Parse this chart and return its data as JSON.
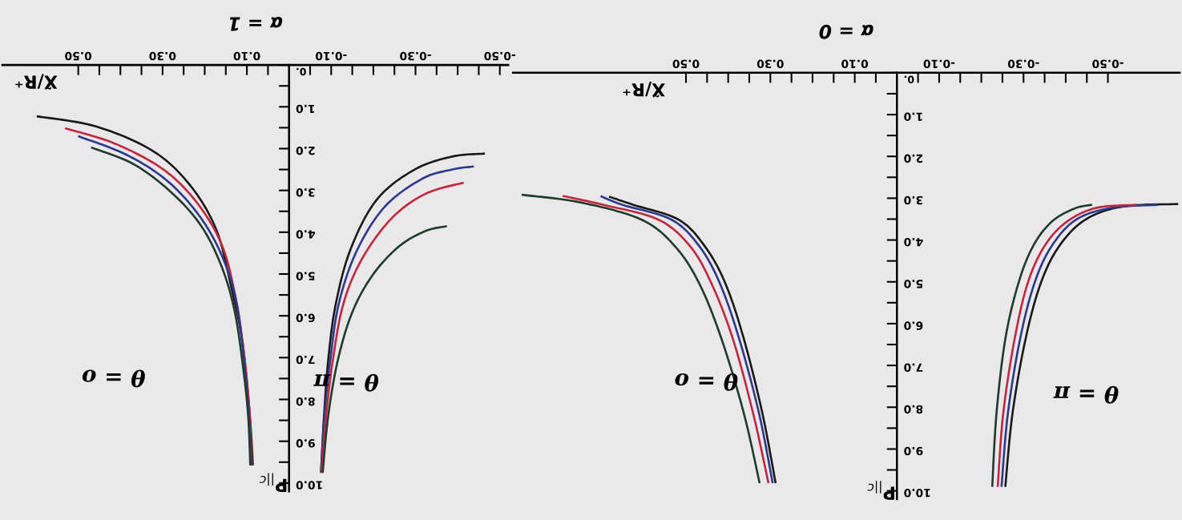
{
  "chart_data": [
    {
      "type": "line",
      "title": "α = 1",
      "xlabel": "X̃/R⁺",
      "ylabel": "P$_{||c}$",
      "xlim": [
        0.68,
        -0.52
      ],
      "ylim": [
        10.2,
        0
      ],
      "grid": false,
      "xticks": [
        {
          "value": 0.5,
          "label": "0.50"
        },
        {
          "value": 0.45,
          "label": null
        },
        {
          "value": 0.4,
          "label": null
        },
        {
          "value": 0.35,
          "label": null
        },
        {
          "value": 0.3,
          "label": "0.30"
        },
        {
          "value": 0.25,
          "label": null
        },
        {
          "value": 0.2,
          "label": null
        },
        {
          "value": 0.15,
          "label": null
        },
        {
          "value": 0.1,
          "label": "0.10"
        },
        {
          "value": 0.05,
          "label": null
        },
        {
          "value": -0.05,
          "label": null
        },
        {
          "value": -0.1,
          "label": "-0.10"
        },
        {
          "value": -0.15,
          "label": null
        },
        {
          "value": -0.2,
          "label": null
        },
        {
          "value": -0.25,
          "label": null
        },
        {
          "value": -0.3,
          "label": "-0.30"
        },
        {
          "value": -0.35,
          "label": null
        },
        {
          "value": -0.4,
          "label": null
        },
        {
          "value": -0.45,
          "label": null
        },
        {
          "value": -0.5,
          "label": "-0.50"
        }
      ],
      "yticks": [
        {
          "value": 0,
          "label": "0."
        },
        {
          "value": 0.5,
          "label": null
        },
        {
          "value": 1,
          "label": "1.0"
        },
        {
          "value": 1.5,
          "label": null
        },
        {
          "value": 2,
          "label": "2.0"
        },
        {
          "value": 2.5,
          "label": null
        },
        {
          "value": 3,
          "label": "3.0"
        },
        {
          "value": 3.5,
          "label": null
        },
        {
          "value": 4,
          "label": "4.0"
        },
        {
          "value": 4.5,
          "label": null
        },
        {
          "value": 5,
          "label": "5.0"
        },
        {
          "value": 5.5,
          "label": null
        },
        {
          "value": 6,
          "label": "6.0"
        },
        {
          "value": 6.5,
          "label": null
        },
        {
          "value": 7,
          "label": "7.0"
        },
        {
          "value": 7.5,
          "label": null
        },
        {
          "value": 8,
          "label": "8.0"
        },
        {
          "value": 8.5,
          "label": null
        },
        {
          "value": 9,
          "label": "9.0"
        },
        {
          "value": 9.5,
          "label": null
        },
        {
          "value": 10,
          "label": "10.0"
        }
      ],
      "annotations": [
        "θ = π",
        "θ = o"
      ],
      "series": [
        {
          "color": "#1a1a1a",
          "x": [
            0.596,
            0.458,
            0.324,
            0.236,
            0.173,
            0.138,
            0.111,
            0.093,
            0.086
          ],
          "values": [
            1.23,
            1.47,
            2.05,
            2.86,
            3.93,
            5.27,
            6.61,
            8.39,
            9.55
          ]
        },
        {
          "color": "#c0283c",
          "x": [
            0.529,
            0.413,
            0.298,
            0.218,
            0.16,
            0.129,
            0.107,
            0.093,
            0.089
          ],
          "values": [
            1.52,
            1.88,
            2.5,
            3.3,
            4.29,
            5.45,
            6.88,
            8.39,
            9.55
          ]
        },
        {
          "color": "#2b3a8c",
          "x": [
            0.498,
            0.387,
            0.289,
            0.209,
            0.156,
            0.124,
            0.107,
            0.095,
            0.09
          ],
          "values": [
            1.71,
            2.14,
            2.77,
            3.66,
            4.64,
            5.71,
            7.05,
            8.39,
            9.55
          ]
        },
        {
          "color": "#1f3d2a",
          "x": [
            0.467,
            0.369,
            0.28,
            0.209,
            0.16,
            0.129,
            0.109,
            0.097,
            0.092
          ],
          "values": [
            1.98,
            2.37,
            3.04,
            3.84,
            4.82,
            5.89,
            7.23,
            8.39,
            9.55
          ]
        },
        {
          "color": "#1a1a1a",
          "x": [
            -0.076,
            -0.083,
            -0.093,
            -0.111,
            -0.147,
            -0.209,
            -0.298,
            -0.387,
            -0.462
          ],
          "values": [
            9.73,
            8.39,
            7.05,
            5.71,
            4.38,
            3.21,
            2.5,
            2.19,
            2.12
          ]
        },
        {
          "color": "#2b3a8c",
          "x": [
            -0.076,
            -0.084,
            -0.098,
            -0.118,
            -0.16,
            -0.227,
            -0.316,
            -0.387,
            -0.436
          ],
          "values": [
            9.73,
            8.39,
            7.05,
            5.71,
            4.46,
            3.39,
            2.72,
            2.5,
            2.43
          ]
        },
        {
          "color": "#c0283c",
          "x": [
            -0.077,
            -0.088,
            -0.104,
            -0.129,
            -0.173,
            -0.244,
            -0.324,
            -0.412
          ],
          "values": [
            9.73,
            8.39,
            7.05,
            5.71,
            4.64,
            3.66,
            3.08,
            2.82
          ]
        },
        {
          "color": "#1f3d2a",
          "x": [
            -0.08,
            -0.093,
            -0.116,
            -0.151,
            -0.2,
            -0.262,
            -0.324,
            -0.372
          ],
          "values": [
            9.73,
            8.39,
            7.05,
            5.89,
            5.0,
            4.33,
            3.97,
            3.86
          ]
        }
      ]
    },
    {
      "type": "line",
      "title": "α = 0",
      "xlabel": "X̃/R⁺",
      "ylabel": "P$_{||c}$",
      "xlim": [
        0.91,
        -0.67
      ],
      "ylim": [
        10.2,
        0
      ],
      "grid": false,
      "xticks": [
        {
          "value": 0.5,
          "label": "0.50"
        },
        {
          "value": 0.45,
          "label": null
        },
        {
          "value": 0.4,
          "label": null
        },
        {
          "value": 0.35,
          "label": null
        },
        {
          "value": 0.3,
          "label": "0.30"
        },
        {
          "value": 0.25,
          "label": null
        },
        {
          "value": 0.2,
          "label": null
        },
        {
          "value": 0.15,
          "label": null
        },
        {
          "value": 0.1,
          "label": "0.10"
        },
        {
          "value": 0.05,
          "label": null
        },
        {
          "value": -0.05,
          "label": null
        },
        {
          "value": -0.1,
          "label": "-0.10"
        },
        {
          "value": -0.15,
          "label": null
        },
        {
          "value": -0.2,
          "label": null
        },
        {
          "value": -0.25,
          "label": null
        },
        {
          "value": -0.3,
          "label": "-0.30"
        },
        {
          "value": -0.35,
          "label": null
        },
        {
          "value": -0.4,
          "label": null
        },
        {
          "value": -0.45,
          "label": null
        },
        {
          "value": -0.5,
          "label": "-0.50"
        }
      ],
      "yticks": [
        {
          "value": 0,
          "label": "0."
        },
        {
          "value": 0.5,
          "label": null
        },
        {
          "value": 1,
          "label": "1.0"
        },
        {
          "value": 1.5,
          "label": null
        },
        {
          "value": 2,
          "label": "2.0"
        },
        {
          "value": 2.5,
          "label": null
        },
        {
          "value": 3,
          "label": "3.0"
        },
        {
          "value": 3.5,
          "label": null
        },
        {
          "value": 4,
          "label": "4.0"
        },
        {
          "value": 4.5,
          "label": null
        },
        {
          "value": 5,
          "label": "5.0"
        },
        {
          "value": 5.5,
          "label": null
        },
        {
          "value": 6,
          "label": "6.0"
        },
        {
          "value": 6.5,
          "label": null
        },
        {
          "value": 7,
          "label": "7.0"
        },
        {
          "value": 7.5,
          "label": null
        },
        {
          "value": 8,
          "label": "8.0"
        },
        {
          "value": 8.5,
          "label": null
        },
        {
          "value": 9,
          "label": "9.0"
        },
        {
          "value": 9.5,
          "label": null
        },
        {
          "value": 10,
          "label": "10.0"
        }
      ],
      "annotations": [
        "θ = π",
        "θ = o"
      ],
      "series": [
        {
          "color": "#1a1a1a",
          "x": [
            -0.257,
            -0.274,
            -0.305,
            -0.341,
            -0.385,
            -0.447,
            -0.535,
            -0.664
          ],
          "values": [
            9.88,
            8.14,
            6.36,
            5.03,
            4.14,
            3.51,
            3.2,
            3.14
          ]
        },
        {
          "color": "#2b3a8c",
          "x": [
            -0.248,
            -0.263,
            -0.292,
            -0.326,
            -0.367,
            -0.425,
            -0.509,
            -0.615
          ],
          "values": [
            9.88,
            8.14,
            6.36,
            5.03,
            4.14,
            3.51,
            3.23,
            3.16
          ]
        },
        {
          "color": "#c0283c",
          "x": [
            -0.239,
            -0.252,
            -0.279,
            -0.31,
            -0.35,
            -0.403,
            -0.473,
            -0.566
          ],
          "values": [
            9.88,
            8.14,
            6.36,
            5.03,
            4.14,
            3.56,
            3.23,
            3.16
          ]
        },
        {
          "color": "#1f3d2a",
          "x": [
            -0.226,
            -0.236,
            -0.257,
            -0.288,
            -0.323,
            -0.367,
            -0.42,
            -0.46
          ],
          "values": [
            9.88,
            8.14,
            6.36,
            5.03,
            4.14,
            3.56,
            3.25,
            3.16
          ]
        },
        {
          "color": "#1a1a1a",
          "x": [
            0.288,
            0.319,
            0.363,
            0.407,
            0.456,
            0.518,
            0.624,
            0.68
          ],
          "values": [
            9.79,
            8.14,
            6.36,
            5.03,
            4.14,
            3.51,
            3.16,
            2.97
          ]
        },
        {
          "color": "#2b3a8c",
          "x": [
            0.295,
            0.327,
            0.374,
            0.42,
            0.469,
            0.535,
            0.65,
            0.7
          ],
          "values": [
            9.79,
            8.14,
            6.36,
            5.03,
            4.14,
            3.51,
            3.16,
            2.96
          ]
        },
        {
          "color": "#c0283c",
          "x": [
            0.305,
            0.341,
            0.389,
            0.44,
            0.491,
            0.566,
            0.695,
            0.79
          ],
          "values": [
            9.79,
            8.14,
            6.36,
            5.03,
            4.14,
            3.51,
            3.16,
            2.95
          ]
        },
        {
          "color": "#1f3d2a",
          "x": [
            0.326,
            0.363,
            0.416,
            0.469,
            0.527,
            0.606,
            0.75,
            0.887
          ],
          "values": [
            9.79,
            8.14,
            6.36,
            5.03,
            4.14,
            3.51,
            3.1,
            2.92
          ]
        }
      ]
    }
  ]
}
